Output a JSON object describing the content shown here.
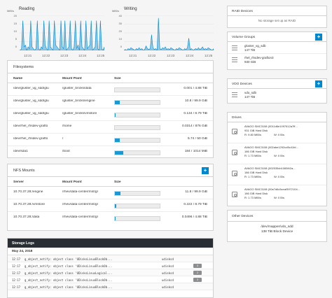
{
  "charts": {
    "reading": {
      "title": "Reading",
      "unit": "MiB/s",
      "y_ticks": [
        "20",
        "15",
        "10",
        "5",
        "0"
      ],
      "x_ticks": [
        "12:21",
        "12:22",
        "12:23",
        "12:24",
        "12:25"
      ]
    },
    "writing": {
      "title": "Writing",
      "unit": "MiB/s",
      "y_ticks": [
        "40",
        "30",
        "20",
        "10",
        "0"
      ],
      "x_ticks": [
        "12:21",
        "12:22",
        "12:23",
        "12:24",
        "12:25"
      ]
    }
  },
  "chart_data": [
    {
      "type": "area",
      "title": "Reading",
      "ylabel": "MiB/s",
      "ylim": [
        0,
        20
      ],
      "x_ticks": [
        "12:21",
        "12:22",
        "12:23",
        "12:24",
        "12:25"
      ],
      "values": [
        0,
        0,
        1,
        17,
        2,
        3,
        0,
        2,
        1,
        17,
        2,
        1,
        0,
        1,
        17,
        1,
        0,
        2,
        1,
        17,
        3,
        1,
        0,
        17,
        2,
        1,
        0,
        17,
        3,
        2,
        1,
        0,
        17,
        2,
        1,
        17,
        0,
        1,
        2,
        17,
        1,
        0,
        2,
        17,
        1,
        3,
        0,
        17,
        2,
        1,
        0,
        17,
        1,
        2,
        3,
        17,
        0,
        1,
        2,
        17,
        1,
        0,
        17,
        1,
        0,
        2
      ]
    },
    {
      "type": "area",
      "title": "Writing",
      "ylabel": "MiB/s",
      "ylim": [
        0,
        40
      ],
      "x_ticks": [
        "12:21",
        "12:22",
        "12:23",
        "12:24",
        "12:25"
      ],
      "values": [
        0,
        1,
        0,
        2,
        1,
        3,
        2,
        1,
        0,
        2,
        1,
        3,
        1,
        2,
        0,
        1,
        5,
        2,
        1,
        2,
        18,
        3,
        1,
        2,
        0,
        37,
        2,
        1,
        3,
        2,
        4,
        1,
        2,
        1,
        3,
        2,
        1,
        0,
        2,
        1,
        3,
        2,
        1,
        0,
        2,
        1,
        3,
        14,
        1,
        2,
        0,
        1,
        2,
        1,
        3,
        1,
        2,
        4,
        1,
        2,
        1,
        3,
        2,
        1,
        0,
        2
      ]
    }
  ],
  "filesystems": {
    "title": "Filesystems",
    "columns": [
      "Name",
      "Mount Point",
      "Size"
    ],
    "rows": [
      {
        "name": "/dev/gluster_vg_sdd/glu",
        "mount": "/gluster_bricks/data",
        "size": "0.001 / 4.88 TiB",
        "fraction": 0.0002
      },
      {
        "name": "/dev/gluster_vg_sdd/glu",
        "mount": "/gluster_bricks/engine",
        "size": "10.8 / 99.9 GiB",
        "fraction": 0.108
      },
      {
        "name": "/dev/gluster_vg_sdd/glu",
        "mount": "/gluster_bricks/vmstore",
        "size": "0.134 / 8.79 TiB",
        "fraction": 0.015
      },
      {
        "name": "/dev/rhel_rhsdev-grafto",
        "mount": "/home",
        "size": "0.0314 / 876 GiB",
        "fraction": 0.0001
      },
      {
        "name": "/dev/rhel_rhsdev-grafto",
        "mount": "/",
        "size": "5.74 / 50 GiB",
        "fraction": 0.115
      },
      {
        "name": "/dev/sda1",
        "mount": "/boot",
        "size": "184 / 1014 MiB",
        "fraction": 0.18
      }
    ]
  },
  "nfs": {
    "title": "NFS Mounts",
    "columns": [
      "Server",
      "Mount Point",
      "Size"
    ],
    "rows": [
      {
        "server": "10.70.37.28:/engine",
        "mount": "/rhev/data-center/mnt/gl",
        "size": "11.8 / 99.9 GiB",
        "fraction": 0.118
      },
      {
        "server": "10.70.37.28:/vmstore",
        "mount": "/rhev/data-center/mnt/gl",
        "size": "0.222 / 8.79 TiB",
        "fraction": 0.025
      },
      {
        "server": "10.70.37.28:/data",
        "mount": "/rhev/data-center/mnt/gl",
        "size": "0.0496 / 4.88 TiB",
        "fraction": 0.01
      }
    ]
  },
  "logs": {
    "title": "Storage Logs",
    "date": "May 24, 2018",
    "entries": [
      {
        "time": "12:17",
        "message": "g_object_notify: object class 'UDisksLinuxBlockOb...",
        "source": "udisksd",
        "badge": ""
      },
      {
        "time": "12:17",
        "message": "g_object_notify: object class 'UDisksLinuxBlockOb...",
        "source": "udisksd",
        "badge": "3"
      },
      {
        "time": "12:17",
        "message": "g_object_notify: object class 'UDisksLinuxLogical...",
        "source": "udisksd",
        "badge": "2"
      },
      {
        "time": "12:17",
        "message": "g_object_notify: object class 'UDisksLinuxBlockOb...",
        "source": "udisksd",
        "badge": "3"
      },
      {
        "time": "12:17",
        "message": "g_object_notify: object class 'UDisksLinuxBlockOb...",
        "source": "udisksd",
        "badge": ""
      }
    ]
  },
  "raid": {
    "title": "RAID Devices",
    "empty": "No storage set up as RAID"
  },
  "volume_groups": {
    "title": "Volume Groups",
    "items": [
      {
        "name": "gluster_vg_sdb",
        "size": "147 TiB"
      },
      {
        "name": "rhel_rhsdev-grafton3",
        "size": "930 GiB"
      }
    ]
  },
  "vdo": {
    "title": "VDO Devices",
    "items": [
      {
        "name": "vdo_sdb",
        "size": "147 TiB"
      }
    ]
  },
  "drives": {
    "title": "Drives",
    "items": [
      {
        "model": "AVAGO SMC3108 (0011d6e1097612a7ff...",
        "type": "931 GiB Hard Disk",
        "read": "R: 9.80 MiB/s",
        "write": "W: 0 B/s"
      },
      {
        "model": "AVAGO SMC3108 (002abe1292cd5c41fd...",
        "type": "186 GiB Hard Disk",
        "read": "R: 1.73 MiB/s",
        "write": "W: 0 B/s"
      },
      {
        "model": "AVAGO SMC3108 (002535cb1065f42a...",
        "type": "186 GiB Hard Disk",
        "read": "R: 1.73 MiB/s",
        "write": "W: 0 B/s"
      },
      {
        "model": "AVAGO SMC3108 (00a7d6c5ceaf3972104...",
        "type": "186 GiB Hard Disk",
        "read": "R: 1.73 MiB/s",
        "write": "W: 0 B/s"
      }
    ]
  },
  "other_devices": {
    "title": "Other Devices",
    "items": [
      {
        "name": "/dev/mapper/vdo_sdd",
        "desc": "138 TiB Block Device"
      }
    ]
  },
  "colors": {
    "accent": "#0088ce",
    "fill": "#1b98d1",
    "logs_header": "#292e34"
  }
}
